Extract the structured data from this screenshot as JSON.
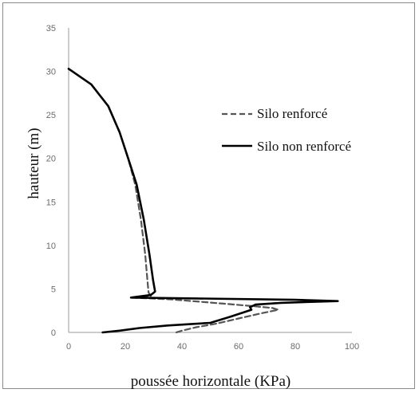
{
  "chart_data": {
    "type": "line",
    "title": "",
    "xlabel": "poussée horizontale (KPa)",
    "ylabel": "hauteur (m)",
    "xlim": [
      0,
      100
    ],
    "ylim": [
      0,
      35
    ],
    "xticks": [
      "0",
      "20",
      "40",
      "60",
      "80",
      "100"
    ],
    "yticks": [
      "0",
      "5",
      "10",
      "15",
      "20",
      "25",
      "30",
      "35"
    ],
    "grid": false,
    "legend_position": "right",
    "series": [
      {
        "name": "Silo renforcé",
        "style": "dashed",
        "color": "#555555",
        "points": [
          [
            0,
            30.3
          ],
          [
            8,
            28.5
          ],
          [
            14,
            26
          ],
          [
            18,
            23
          ],
          [
            21,
            20
          ],
          [
            23.5,
            17
          ],
          [
            25.5,
            13
          ],
          [
            27,
            9
          ],
          [
            27.8,
            6
          ],
          [
            28.2,
            4.6
          ],
          [
            29,
            4.2
          ],
          [
            22,
            4.0
          ],
          [
            36,
            3.8
          ],
          [
            55,
            3.3
          ],
          [
            66,
            3.0
          ],
          [
            72,
            2.8
          ],
          [
            74,
            2.6
          ],
          [
            68,
            2.2
          ],
          [
            60,
            1.6
          ],
          [
            52,
            1.0
          ],
          [
            45,
            0.6
          ],
          [
            40,
            0.2
          ],
          [
            38,
            0
          ]
        ]
      },
      {
        "name": "Silo non renforcé",
        "style": "solid",
        "color": "#000000",
        "points": [
          [
            0,
            30.3
          ],
          [
            8,
            28.5
          ],
          [
            14,
            26
          ],
          [
            18,
            23
          ],
          [
            21,
            20
          ],
          [
            24,
            17
          ],
          [
            26.5,
            13
          ],
          [
            28.5,
            9
          ],
          [
            29.8,
            6
          ],
          [
            30.5,
            4.7
          ],
          [
            29,
            4.3
          ],
          [
            22,
            4.0
          ],
          [
            45,
            3.9
          ],
          [
            80,
            3.75
          ],
          [
            95,
            3.6
          ],
          [
            75,
            3.4
          ],
          [
            66,
            3.2
          ],
          [
            64,
            2.9
          ],
          [
            64.5,
            2.6
          ],
          [
            57,
            1.8
          ],
          [
            50,
            1.1
          ],
          [
            35,
            0.8
          ],
          [
            25,
            0.5
          ],
          [
            18,
            0.2
          ],
          [
            12,
            0
          ]
        ]
      }
    ]
  }
}
